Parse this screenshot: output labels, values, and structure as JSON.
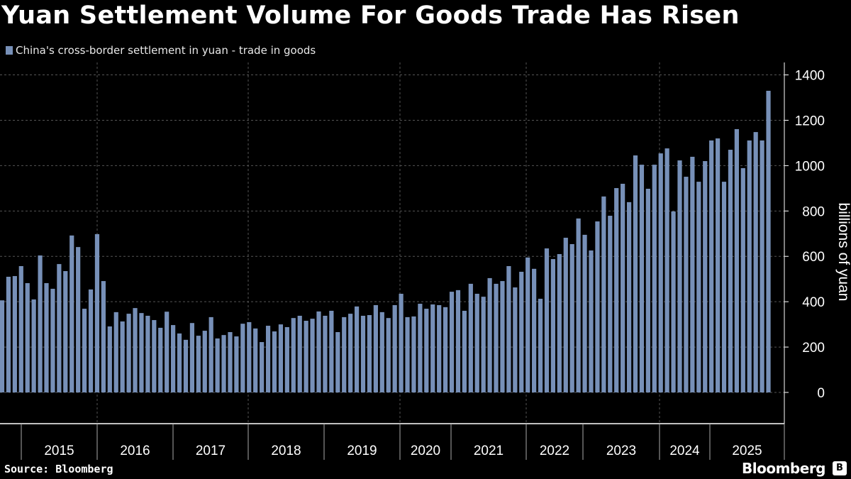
{
  "title": "Yuan Settlement Volume For Goods Trade Has Risen",
  "source": "Source: Bloomberg",
  "brand": "Bloomberg",
  "chart_data": {
    "type": "bar",
    "title": "Yuan Settlement Volume For Goods Trade Has Risen",
    "series": [
      {
        "name": "China's cross-border settlement in yuan - trade in goods",
        "color": "#7790b8",
        "values": [
          406,
          510,
          513,
          557,
          482,
          410,
          604,
          482,
          457,
          566,
          535,
          692,
          641,
          369,
          454,
          698,
          491,
          291,
          354,
          313,
          347,
          372,
          350,
          338,
          319,
          285,
          356,
          297,
          260,
          232,
          306,
          250,
          272,
          332,
          238,
          253,
          266,
          247,
          303,
          310,
          282,
          222,
          294,
          269,
          300,
          288,
          328,
          338,
          316,
          325,
          357,
          338,
          360,
          266,
          332,
          347,
          379,
          338,
          341,
          385,
          354,
          328,
          385,
          435,
          332,
          335,
          391,
          369,
          388,
          385,
          376,
          444,
          451,
          360,
          479,
          435,
          422,
          504,
          479,
          491,
          557,
          463,
          532,
          595,
          545,
          413,
          635,
          588,
          610,
          682,
          654,
          767,
          695,
          626,
          754,
          864,
          779,
          901,
          920,
          839,
          1045,
          1004,
          898,
          1004,
          1054,
          1076,
          798,
          1023,
          951,
          1039,
          929,
          1020,
          1111,
          1120,
          929,
          1070,
          1161,
          989,
          1111,
          1148,
          1111,
          1330
        ]
      }
    ],
    "x_tick_labels": [
      "2015",
      "2016",
      "2017",
      "2018",
      "2019",
      "2020",
      "2021",
      "2022",
      "2023",
      "2024",
      "2025"
    ],
    "ylabel": "billions of yuan",
    "y_ticks": [
      "0",
      "200",
      "400",
      "600",
      "800",
      "1000",
      "1200",
      "1400"
    ],
    "ylim": [
      -138,
      1455
    ],
    "y_axis_side": "right",
    "grid": true,
    "legend_position": "top-left",
    "background": "#000000"
  }
}
